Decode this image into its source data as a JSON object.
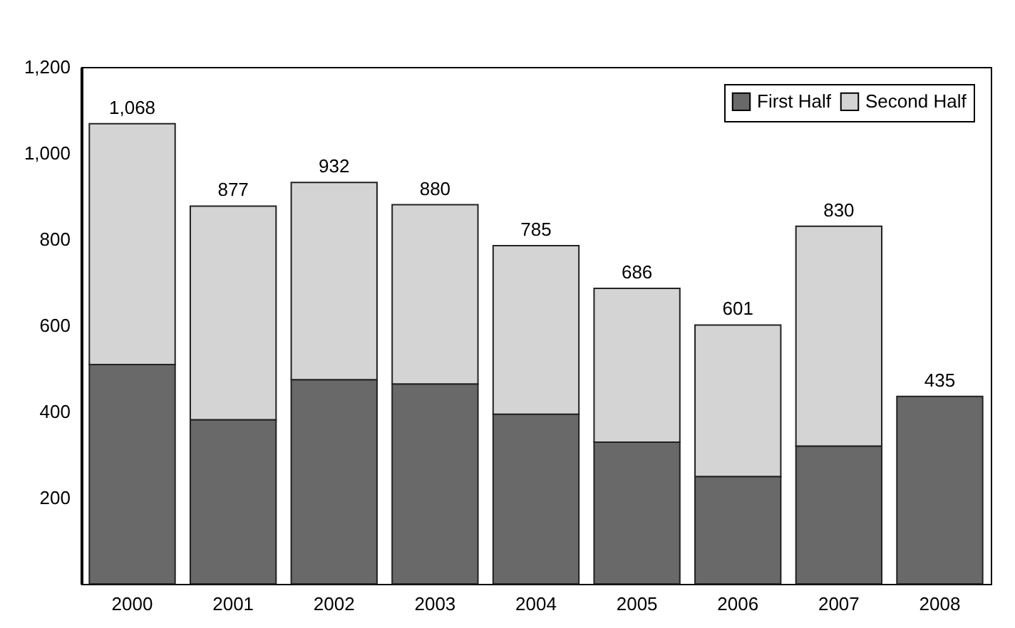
{
  "chart_data": {
    "type": "bar",
    "stacked": true,
    "categories": [
      "2000",
      "2001",
      "2002",
      "2003",
      "2004",
      "2005",
      "2006",
      "2007",
      "2008"
    ],
    "series": [
      {
        "name": "First Half",
        "color": "#696969",
        "values": [
          509,
          381,
          474,
          464,
          394,
          329,
          249,
          320,
          435
        ]
      },
      {
        "name": "Second Half",
        "color": "#d4d4d4",
        "values": [
          559,
          496,
          458,
          416,
          391,
          357,
          352,
          510,
          null
        ]
      }
    ],
    "totals": [
      "1,068",
      "877",
      "932",
      "880",
      "785",
      "686",
      "601",
      "830",
      "435"
    ],
    "ylim": [
      0,
      1200
    ],
    "yticks": [
      200,
      400,
      600,
      800,
      {
        "value": 1000,
        "label": "1,000"
      },
      {
        "value": 1200,
        "label": "1,200"
      }
    ],
    "grid": false,
    "legend": "top right"
  }
}
